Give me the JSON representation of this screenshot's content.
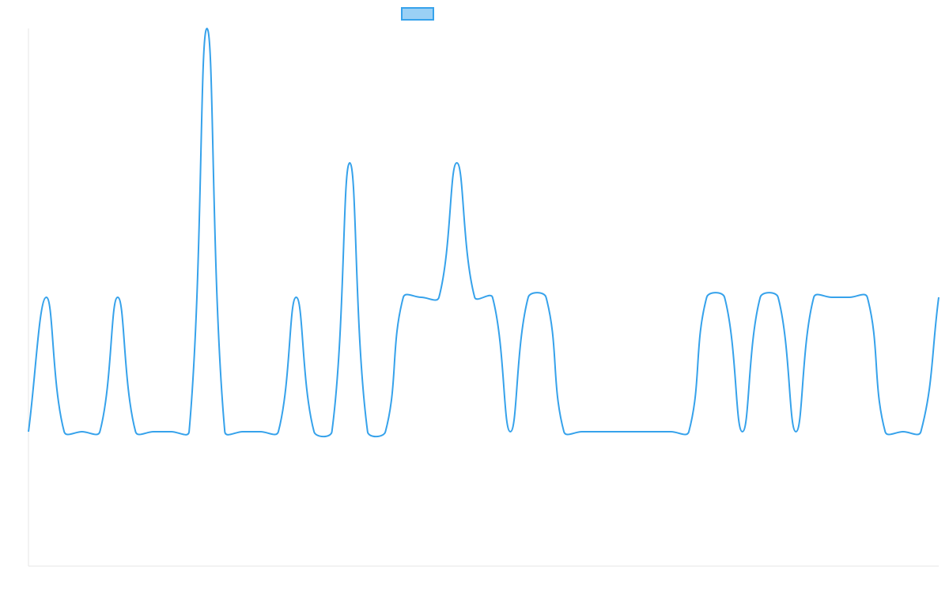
{
  "chart_data": {
    "type": "line",
    "legend": "top",
    "tension": 0.4,
    "series": [
      {
        "color": "#36a2eb",
        "values": [
          0,
          1,
          0,
          0,
          0,
          1,
          0,
          0,
          0,
          0,
          3,
          0,
          0,
          0,
          0,
          1,
          0,
          0,
          2,
          0,
          0,
          1,
          1,
          1,
          2,
          1,
          1,
          0,
          1,
          1,
          0,
          0,
          0,
          0,
          0,
          0,
          0,
          0,
          1,
          1,
          0,
          1,
          1,
          0,
          1,
          1,
          1,
          1,
          0,
          0,
          0,
          1
        ]
      }
    ],
    "ylim": [
      -1,
      3
    ]
  }
}
